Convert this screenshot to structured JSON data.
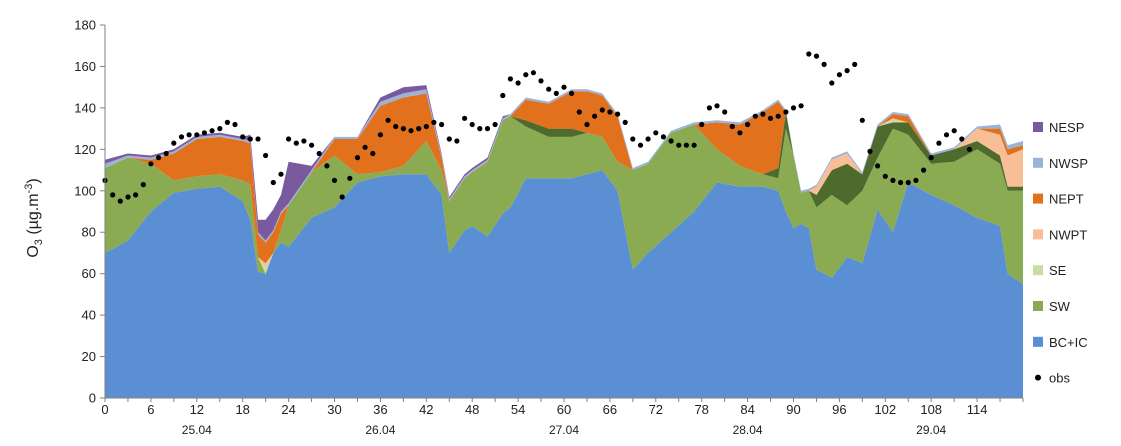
{
  "chart_data": {
    "type": "area",
    "stacked": true,
    "ylabel": {
      "main": "O",
      "sub": "3",
      "mid": " (µg.m",
      "sup": "-3",
      "end": ")"
    },
    "xlabel": "",
    "ylim": [
      0,
      180
    ],
    "xlim": [
      0,
      120
    ],
    "y_ticks": [
      "0",
      "20",
      "40",
      "60",
      "80",
      "100",
      "120",
      "140",
      "160",
      "180"
    ],
    "x_ticks": [
      "0",
      "6",
      "12",
      "18",
      "24",
      "30",
      "36",
      "42",
      "48",
      "54",
      "60",
      "66",
      "72",
      "78",
      "84",
      "90",
      "96",
      "102",
      "108",
      "114"
    ],
    "date_labels": [
      {
        "hour": 12,
        "label": "25.04"
      },
      {
        "hour": 36,
        "label": "26.04"
      },
      {
        "hour": 60,
        "label": "27.04"
      },
      {
        "hour": 84,
        "label": "28.04"
      },
      {
        "hour": 108,
        "label": "29.04"
      }
    ],
    "grid": false,
    "legend_position": "right",
    "x": [
      0,
      3,
      6,
      9,
      12,
      15,
      18,
      19,
      20,
      21,
      22,
      23,
      24,
      27,
      30,
      33,
      36,
      39,
      42,
      44,
      45,
      47,
      48,
      50,
      52,
      53,
      55,
      58,
      61,
      63,
      65,
      67,
      69,
      71,
      74,
      77,
      80,
      83,
      86,
      88,
      89,
      90,
      91,
      92,
      93,
      95,
      97,
      99,
      101,
      103,
      105,
      108,
      111,
      114,
      117,
      118,
      120
    ],
    "series": [
      {
        "name": "BC+IC",
        "color": "#5a8fd4",
        "values": [
          70,
          76,
          90,
          99,
          101,
          102,
          95,
          86,
          61,
          60,
          70,
          75,
          73,
          87,
          92,
          104,
          107,
          108,
          108,
          98,
          70,
          81,
          83,
          78,
          89,
          92,
          106,
          106,
          106,
          108,
          110,
          100,
          62,
          70,
          80,
          90,
          104,
          102,
          102,
          100,
          90,
          82,
          84,
          82,
          62,
          58,
          68,
          65,
          91,
          80,
          104,
          98,
          93,
          87,
          83,
          60,
          55
        ]
      },
      {
        "name": "SW",
        "color": "#8aab52",
        "values": [
          41,
          40,
          23,
          6,
          6,
          6,
          10,
          17,
          7,
          0,
          0,
          6,
          20,
          22,
          25,
          4,
          2,
          4,
          16,
          12,
          25,
          25,
          26,
          36,
          45,
          44,
          25,
          20,
          20,
          20,
          16,
          14,
          48,
          43,
          48,
          42,
          16,
          10,
          6,
          6,
          40,
          35,
          15,
          18,
          30,
          40,
          25,
          35,
          25,
          50,
          23,
          15,
          21,
          33,
          30,
          40,
          45
        ]
      },
      {
        "name": "SW (dark)",
        "legend": false,
        "color": "#4e6a2c",
        "values": [
          0,
          0,
          0,
          0,
          0,
          0,
          0,
          0,
          0,
          0,
          0,
          0,
          0,
          0,
          0,
          0,
          0,
          0,
          0,
          0,
          0,
          0,
          0,
          0,
          0,
          0,
          3,
          4,
          4,
          0,
          0,
          0,
          0,
          0,
          0,
          0,
          0,
          0,
          0,
          5,
          8,
          0,
          0,
          0,
          6,
          12,
          20,
          8,
          15,
          3,
          6,
          4,
          6,
          4,
          4,
          2,
          2
        ]
      },
      {
        "name": "SE",
        "color": "#c9dca1",
        "values": [
          0,
          0,
          0,
          0,
          0,
          0,
          0,
          0,
          0,
          3,
          0,
          0,
          0,
          0,
          0,
          0,
          0,
          0,
          0,
          0,
          0,
          0,
          0,
          0,
          0,
          0,
          0,
          0,
          0,
          0,
          0,
          0,
          0,
          0,
          0,
          0,
          0,
          0,
          0,
          0,
          0,
          0,
          0,
          0,
          0,
          0,
          0,
          0,
          0,
          1,
          0,
          0,
          0,
          0,
          0,
          0,
          0
        ]
      },
      {
        "name": "NWPT",
        "color": "#f8bf96",
        "values": [
          0,
          0,
          0,
          0,
          0,
          0,
          0,
          0,
          0,
          2,
          0,
          0,
          0,
          0,
          0,
          0,
          0,
          0,
          0,
          0,
          0,
          0,
          0,
          0,
          0,
          0,
          0,
          0,
          0,
          0,
          0,
          0,
          0,
          0,
          0,
          0,
          0,
          0,
          0,
          0,
          0,
          0,
          0,
          0,
          4,
          5,
          5,
          0,
          0,
          1,
          0,
          0,
          0,
          6,
          10,
          15,
          18
        ]
      },
      {
        "name": "NEPT",
        "color": "#e2711d",
        "values": [
          0,
          0,
          2,
          13,
          18,
          18,
          19,
          20,
          11,
          10,
          10,
          8,
          0,
          0,
          8,
          17,
          32,
          33,
          23,
          6,
          0,
          0,
          0,
          0,
          0,
          0,
          10,
          12,
          18,
          20,
          20,
          22,
          0,
          0,
          0,
          0,
          13,
          20,
          30,
          32,
          0,
          0,
          0,
          0,
          0,
          0,
          0,
          0,
          0,
          2,
          3,
          0,
          0,
          0,
          3,
          3,
          2
        ]
      },
      {
        "name": "NWSP",
        "color": "#9bb3d8",
        "values": [
          2,
          1,
          1,
          1,
          1,
          1,
          1,
          1,
          1,
          1,
          1,
          1,
          1,
          1,
          1,
          1,
          2,
          2,
          2,
          1,
          1,
          1,
          1,
          1,
          1,
          1,
          1,
          1,
          1,
          1,
          1,
          1,
          1,
          1,
          1,
          1,
          1,
          1,
          1,
          1,
          1,
          1,
          1,
          1,
          1,
          1,
          1,
          1,
          1,
          1,
          1,
          1,
          1,
          1,
          2,
          2,
          2
        ]
      },
      {
        "name": "NESP",
        "color": "#7a5a9e",
        "values": [
          2,
          1,
          1,
          1,
          1,
          1,
          1,
          3,
          6,
          10,
          10,
          8,
          20,
          2,
          0,
          0,
          2,
          3,
          2,
          1,
          1,
          1,
          1,
          1,
          1,
          0,
          0,
          0,
          0,
          0,
          0,
          0,
          0,
          0,
          0,
          0,
          0,
          0,
          0,
          0,
          0,
          0,
          0,
          0,
          0,
          0,
          0,
          0,
          0,
          0,
          0,
          0,
          0,
          0,
          0,
          0,
          0
        ]
      }
    ],
    "obs": {
      "name": "obs",
      "color": "#000000",
      "points": [
        [
          0,
          105
        ],
        [
          1,
          98
        ],
        [
          2,
          95
        ],
        [
          3,
          97
        ],
        [
          4,
          98
        ],
        [
          5,
          103
        ],
        [
          6,
          113
        ],
        [
          7,
          116
        ],
        [
          8,
          118
        ],
        [
          9,
          123
        ],
        [
          10,
          126
        ],
        [
          11,
          127
        ],
        [
          12,
          127
        ],
        [
          13,
          128
        ],
        [
          14,
          129
        ],
        [
          15,
          130
        ],
        [
          16,
          133
        ],
        [
          17,
          132
        ],
        [
          18,
          126
        ],
        [
          19,
          125
        ],
        [
          20,
          125
        ],
        [
          21,
          117
        ],
        [
          22,
          104
        ],
        [
          23,
          108
        ],
        [
          24,
          125
        ],
        [
          25,
          123
        ],
        [
          26,
          124
        ],
        [
          27,
          122
        ],
        [
          28,
          118
        ],
        [
          29,
          112
        ],
        [
          30,
          105
        ],
        [
          31,
          97
        ],
        [
          32,
          106
        ],
        [
          33,
          116
        ],
        [
          34,
          121
        ],
        [
          35,
          118
        ],
        [
          36,
          127
        ],
        [
          37,
          134
        ],
        [
          38,
          131
        ],
        [
          39,
          130
        ],
        [
          40,
          129
        ],
        [
          41,
          130
        ],
        [
          42,
          131
        ],
        [
          43,
          133
        ],
        [
          44,
          132
        ],
        [
          45,
          125
        ],
        [
          46,
          124
        ],
        [
          47,
          135
        ],
        [
          48,
          132
        ],
        [
          49,
          130
        ],
        [
          50,
          130
        ],
        [
          51,
          132
        ],
        [
          52,
          146
        ],
        [
          53,
          154
        ],
        [
          54,
          152
        ],
        [
          55,
          156
        ],
        [
          56,
          157
        ],
        [
          57,
          153
        ],
        [
          58,
          149
        ],
        [
          59,
          147
        ],
        [
          60,
          150
        ],
        [
          61,
          147
        ],
        [
          62,
          138
        ],
        [
          63,
          132
        ],
        [
          64,
          136
        ],
        [
          65,
          139
        ],
        [
          66,
          138
        ],
        [
          67,
          137
        ],
        [
          68,
          133
        ],
        [
          69,
          125
        ],
        [
          70,
          122
        ],
        [
          71,
          125
        ],
        [
          72,
          128
        ],
        [
          73,
          126
        ],
        [
          74,
          124
        ],
        [
          75,
          122
        ],
        [
          76,
          122
        ],
        [
          77,
          122
        ],
        [
          78,
          132
        ],
        [
          79,
          140
        ],
        [
          80,
          141
        ],
        [
          81,
          138
        ],
        [
          82,
          131
        ],
        [
          83,
          128
        ],
        [
          84,
          132
        ],
        [
          85,
          136
        ],
        [
          86,
          137
        ],
        [
          87,
          135
        ],
        [
          88,
          136
        ],
        [
          89,
          138
        ],
        [
          90,
          140
        ],
        [
          91,
          141
        ],
        [
          92,
          166
        ],
        [
          93,
          165
        ],
        [
          94,
          161
        ],
        [
          95,
          152
        ],
        [
          96,
          156
        ],
        [
          97,
          158
        ],
        [
          98,
          161
        ],
        [
          99,
          134
        ],
        [
          100,
          119
        ],
        [
          101,
          112
        ],
        [
          102,
          107
        ],
        [
          103,
          105
        ],
        [
          104,
          104
        ],
        [
          105,
          104
        ],
        [
          106,
          105
        ],
        [
          107,
          110
        ],
        [
          108,
          116
        ],
        [
          109,
          123
        ],
        [
          110,
          127
        ],
        [
          111,
          129
        ],
        [
          112,
          125
        ],
        [
          113,
          120
        ]
      ]
    }
  }
}
